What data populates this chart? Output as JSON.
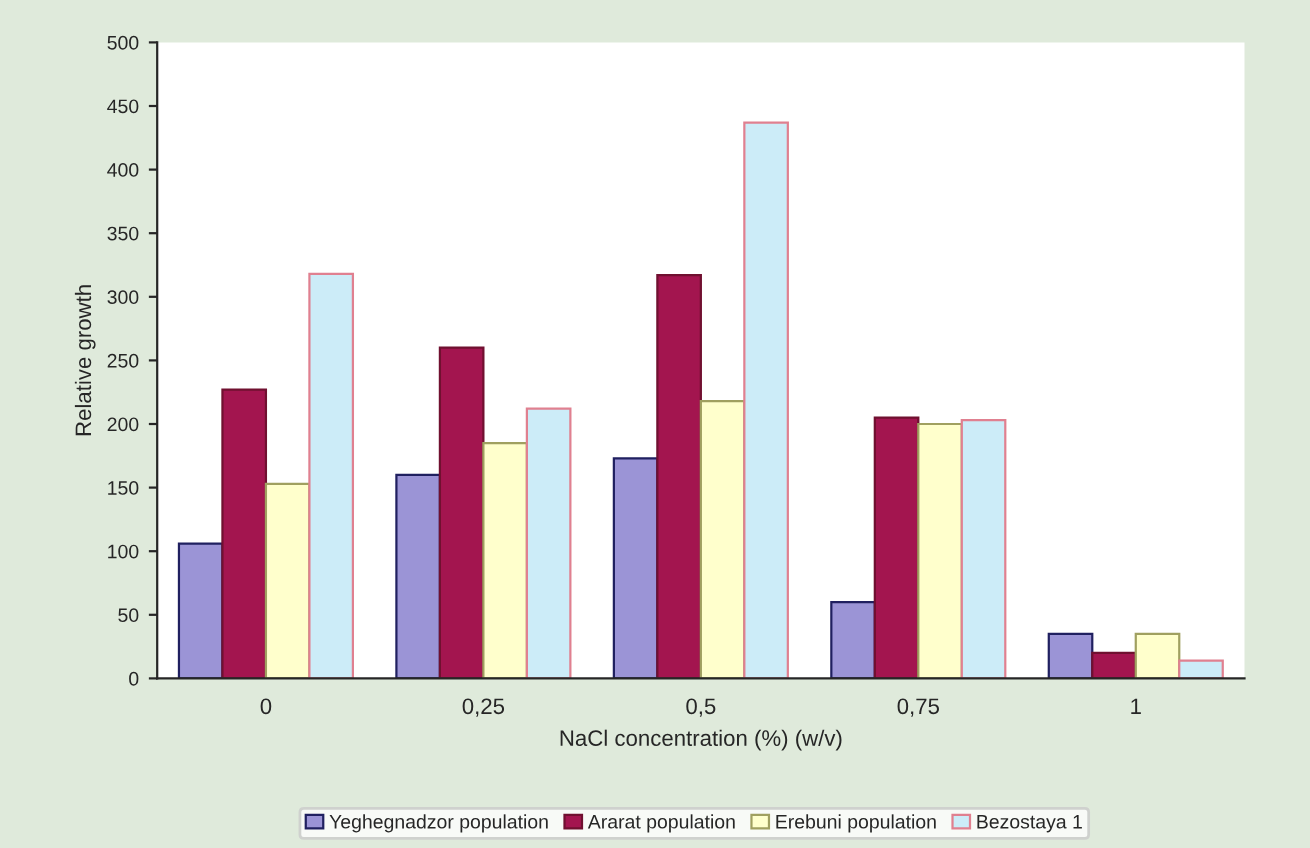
{
  "chart_data": {
    "type": "bar",
    "xlabel": "NaCl concentration (%) (w/v)",
    "ylabel": "Relative growth",
    "categories": [
      "0",
      "0,25",
      "0,5",
      "0,75",
      "1"
    ],
    "series": [
      {
        "name": "Yeghegnadzor population",
        "color": "#9b94d6",
        "values": [
          106,
          160,
          173,
          60,
          35
        ]
      },
      {
        "name": "Ararat population",
        "color": "#a3154f",
        "values": [
          227,
          260,
          317,
          205,
          20
        ]
      },
      {
        "name": "Erebuni population",
        "color": "#ffffcc",
        "values": [
          153,
          185,
          218,
          200,
          35
        ]
      },
      {
        "name": "Bezostaya 1",
        "color": "#ccecf8",
        "values": [
          318,
          212,
          437,
          203,
          14
        ]
      }
    ],
    "ylim": [
      0,
      500
    ],
    "yticks": [
      0,
      50,
      100,
      150,
      200,
      250,
      300,
      350,
      400,
      450,
      500
    ],
    "grid": false,
    "legend": "bottom"
  }
}
